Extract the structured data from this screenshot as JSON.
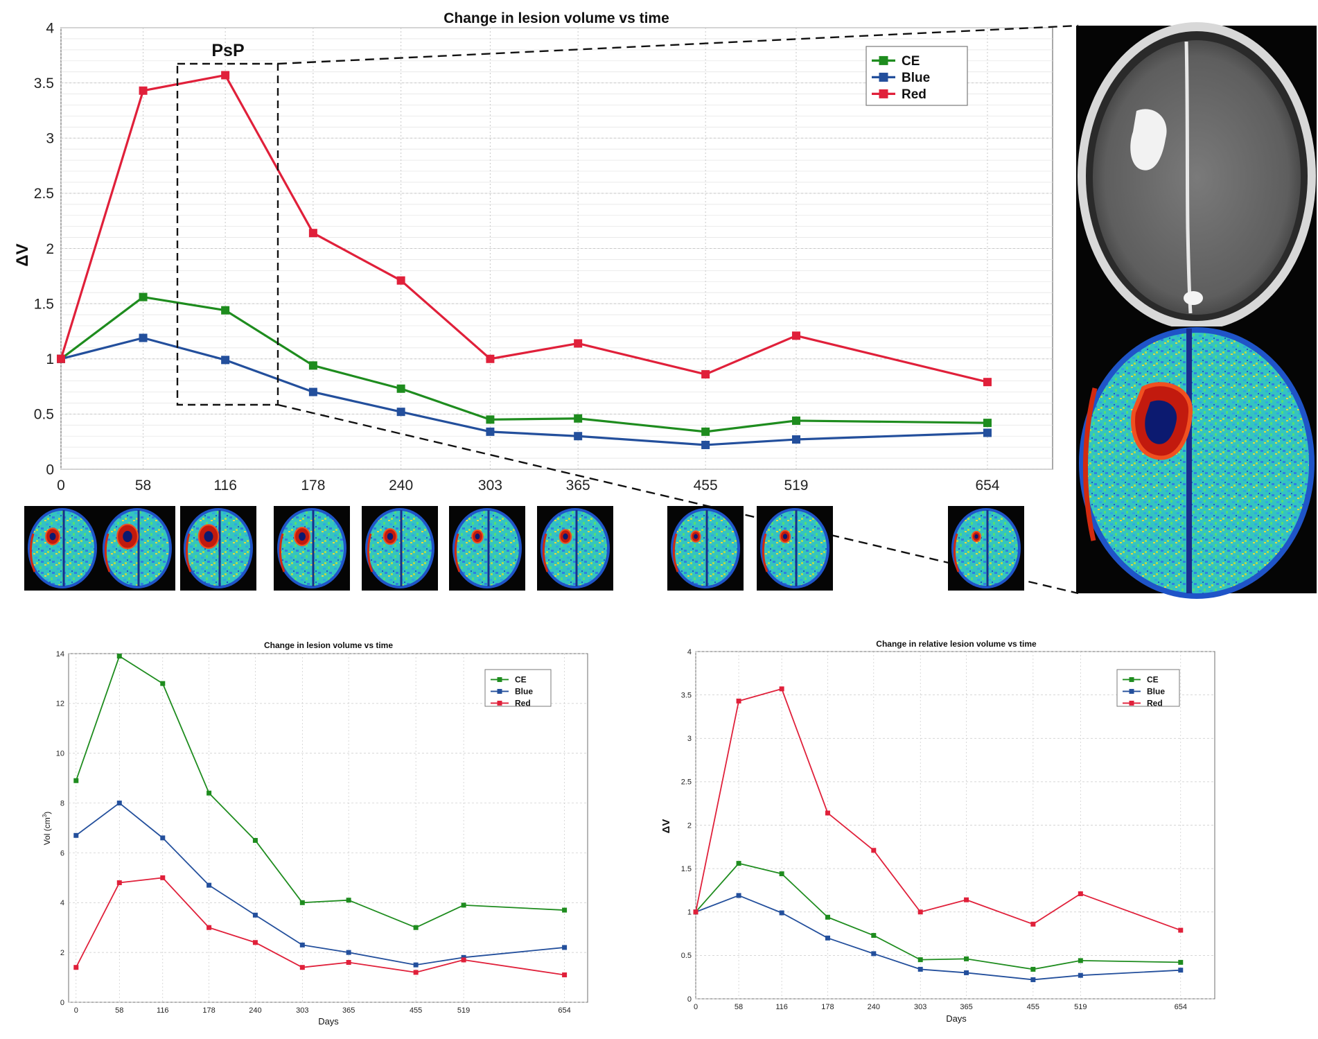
{
  "colors": {
    "CE": "#1e8c1e",
    "Blue": "#234f9c",
    "Red": "#e0203a",
    "grid": "#c8c8c8",
    "axis": "#5a5a5a"
  },
  "psp_label": "PsP",
  "chart_data": [
    {
      "id": "main",
      "type": "line",
      "title": "Change in lesion volume vs time",
      "xlabel": "",
      "ylabel": "ΔV",
      "categories": [
        "0",
        "58",
        "116",
        "178",
        "240",
        "303",
        "365",
        "455",
        "519",
        "654"
      ],
      "x": [
        0,
        58,
        116,
        178,
        240,
        303,
        365,
        455,
        519,
        654
      ],
      "xlim": [
        0,
        700
      ],
      "ylim": [
        0,
        4
      ],
      "yticks": [
        "0",
        "0.5",
        "1",
        "1.5",
        "2",
        "2.5",
        "3",
        "3.5",
        "4"
      ],
      "grid": true,
      "legend": "top-right",
      "series": [
        {
          "name": "CE",
          "values": [
            1.0,
            1.56,
            1.44,
            0.94,
            0.73,
            0.45,
            0.46,
            0.34,
            0.44,
            0.42
          ]
        },
        {
          "name": "Blue",
          "values": [
            1.0,
            1.19,
            0.99,
            0.7,
            0.52,
            0.34,
            0.3,
            0.22,
            0.27,
            0.33
          ]
        },
        {
          "name": "Red",
          "values": [
            1.0,
            3.43,
            3.57,
            2.14,
            1.71,
            1.0,
            1.14,
            0.86,
            1.21,
            0.79
          ]
        }
      ]
    },
    {
      "id": "abs",
      "type": "line",
      "title": "Change in lesion volume vs time",
      "xlabel": "Days",
      "ylabel": "Vol (cm",
      "ylabel_sup": "3",
      "ylabel_end": ")",
      "categories": [
        "0",
        "58",
        "116",
        "178",
        "240",
        "303",
        "365",
        "455",
        "519",
        "654"
      ],
      "x": [
        0,
        58,
        116,
        178,
        240,
        303,
        365,
        455,
        519,
        654
      ],
      "xlim": [
        -10,
        685
      ],
      "ylim": [
        0,
        14
      ],
      "yticks": [
        "0",
        "2",
        "4",
        "6",
        "8",
        "10",
        "12",
        "14"
      ],
      "grid": true,
      "legend": "top-right",
      "series": [
        {
          "name": "CE",
          "values": [
            8.9,
            13.9,
            12.8,
            8.4,
            6.5,
            4.0,
            4.1,
            3.0,
            3.9,
            3.7
          ]
        },
        {
          "name": "Blue",
          "values": [
            6.7,
            8.0,
            6.6,
            4.7,
            3.5,
            2.3,
            2.0,
            1.5,
            1.8,
            2.2
          ]
        },
        {
          "name": "Red",
          "values": [
            1.4,
            4.8,
            5.0,
            3.0,
            2.4,
            1.4,
            1.6,
            1.2,
            1.7,
            1.1
          ]
        }
      ]
    },
    {
      "id": "rel",
      "type": "line",
      "title": "Change in relative lesion volume vs time",
      "xlabel": "Days",
      "ylabel": "ΔV",
      "categories": [
        "0",
        "58",
        "116",
        "178",
        "240",
        "303",
        "365",
        "455",
        "519",
        "654"
      ],
      "x": [
        0,
        58,
        116,
        178,
        240,
        303,
        365,
        455,
        519,
        654
      ],
      "xlim": [
        0,
        700
      ],
      "ylim": [
        0,
        4
      ],
      "yticks": [
        "0",
        "0.5",
        "1",
        "1.5",
        "2",
        "2.5",
        "3",
        "3.5",
        "4"
      ],
      "grid": true,
      "legend": "top-right",
      "series": [
        {
          "name": "CE",
          "values": [
            1.0,
            1.56,
            1.44,
            0.94,
            0.73,
            0.45,
            0.46,
            0.34,
            0.44,
            0.42
          ]
        },
        {
          "name": "Blue",
          "values": [
            1.0,
            1.19,
            0.99,
            0.7,
            0.52,
            0.34,
            0.3,
            0.22,
            0.27,
            0.33
          ]
        },
        {
          "name": "Red",
          "values": [
            1.0,
            3.43,
            3.57,
            2.14,
            1.71,
            1.0,
            1.14,
            0.86,
            1.21,
            0.79
          ]
        }
      ]
    }
  ]
}
